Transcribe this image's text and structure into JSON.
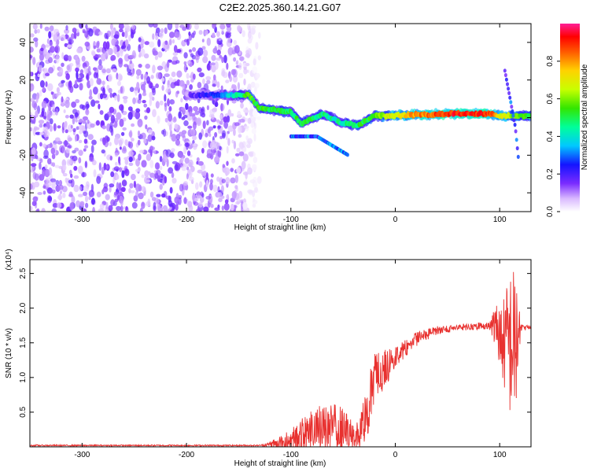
{
  "title": "C2E2.2025.360.14.21.G07",
  "chart_data": [
    {
      "type": "heatmap",
      "title": "C2E2.2025.360.14.21.G07",
      "xlabel": "Height of straight line (km)",
      "ylabel": "Frequency (Hz)",
      "xlim": [
        -350,
        130
      ],
      "ylim": [
        -50,
        50
      ],
      "x_ticks": [
        -300,
        -200,
        -100,
        0,
        100
      ],
      "x_tick_labels": [
        "-300",
        "-200",
        "-100",
        "0",
        "100"
      ],
      "y_ticks": [
        -40,
        -20,
        0,
        20,
        40
      ],
      "y_tick_labels": [
        "-40",
        "-20",
        "0",
        "20",
        "40"
      ],
      "colorbar": {
        "label": "Normalized spectral amplitude",
        "range": [
          0,
          1
        ],
        "ticks": [
          0.0,
          0.2,
          0.4,
          0.6,
          0.8
        ],
        "tick_labels": [
          "0.0",
          "0.2",
          "0.4",
          "0.6",
          "0.8"
        ]
      },
      "noise_region": {
        "x_range": [
          -350,
          -140
        ],
        "freq_range": [
          -50,
          50
        ],
        "amplitude": 0.05
      },
      "ridge": [
        {
          "x": -200,
          "freq": 12,
          "amp": 0.1
        },
        {
          "x": -160,
          "freq": 12,
          "amp": 0.35
        },
        {
          "x": -140,
          "freq": 12,
          "amp": 0.55
        },
        {
          "x": -130,
          "freq": 5,
          "amp": 0.55
        },
        {
          "x": -100,
          "freq": 3,
          "amp": 0.5
        },
        {
          "x": -90,
          "freq": -3,
          "amp": 0.5
        },
        {
          "x": -70,
          "freq": 2,
          "amp": 0.45
        },
        {
          "x": -50,
          "freq": -3,
          "amp": 0.45
        },
        {
          "x": -35,
          "freq": -4,
          "amp": 0.5
        },
        {
          "x": -20,
          "freq": 1,
          "amp": 0.55
        },
        {
          "x": 0,
          "freq": 1,
          "amp": 0.7
        },
        {
          "x": 20,
          "freq": 1.5,
          "amp": 0.8
        },
        {
          "x": 50,
          "freq": 2,
          "amp": 0.9
        },
        {
          "x": 90,
          "freq": 2,
          "amp": 0.9
        },
        {
          "x": 100,
          "freq": 1,
          "amp": 0.7
        },
        {
          "x": 130,
          "freq": 1,
          "amp": 0.5
        }
      ],
      "secondary_branches": [
        {
          "points": [
            {
              "x": -100,
              "freq": -10
            },
            {
              "x": -75,
              "freq": -10
            },
            {
              "x": -60,
              "freq": -15
            },
            {
              "x": -45,
              "freq": -20
            }
          ],
          "amp": 0.3
        },
        {
          "points": [
            {
              "x": 105,
              "freq": 25
            },
            {
              "x": 110,
              "freq": 10
            },
            {
              "x": 115,
              "freq": -5
            },
            {
              "x": 118,
              "freq": -22
            }
          ],
          "amp": 0.25
        }
      ]
    },
    {
      "type": "line",
      "xlabel": "Height of straight line (km)",
      "ylabel": "SNR (10 * v/v)",
      "y_multiplier": "(x10⁴)",
      "xlim": [
        -350,
        130
      ],
      "ylim": [
        0,
        2.7
      ],
      "x_ticks": [
        -300,
        -200,
        -100,
        0,
        100
      ],
      "x_tick_labels": [
        "-300",
        "-200",
        "-100",
        "0",
        "100"
      ],
      "y_ticks": [
        0.5,
        1.0,
        1.5,
        2.0,
        2.5
      ],
      "y_tick_labels": [
        "0.5",
        "1.0",
        "1.5",
        "2.0",
        "2.5"
      ],
      "series": [
        {
          "name": "SNR",
          "color": "#e8312f",
          "envelope": [
            {
              "x": -350,
              "base": 0.02,
              "amp": 0.02
            },
            {
              "x": -130,
              "base": 0.02,
              "amp": 0.02
            },
            {
              "x": -110,
              "base": 0.05,
              "amp": 0.1
            },
            {
              "x": -90,
              "base": 0.15,
              "amp": 0.25
            },
            {
              "x": -70,
              "base": 0.3,
              "amp": 0.35
            },
            {
              "x": -50,
              "base": 0.25,
              "amp": 0.35
            },
            {
              "x": -35,
              "base": 0.15,
              "amp": 0.2
            },
            {
              "x": -28,
              "base": 0.5,
              "amp": 0.45
            },
            {
              "x": -20,
              "base": 1.0,
              "amp": 0.35
            },
            {
              "x": -10,
              "base": 1.1,
              "amp": 0.3
            },
            {
              "x": 0,
              "base": 1.3,
              "amp": 0.15
            },
            {
              "x": 20,
              "base": 1.55,
              "amp": 0.1
            },
            {
              "x": 40,
              "base": 1.68,
              "amp": 0.06
            },
            {
              "x": 60,
              "base": 1.72,
              "amp": 0.05
            },
            {
              "x": 90,
              "base": 1.75,
              "amp": 0.05
            },
            {
              "x": 98,
              "base": 1.72,
              "amp": 0.4
            },
            {
              "x": 103,
              "base": 1.5,
              "amp": 0.6
            },
            {
              "x": 110,
              "base": 1.5,
              "amp": 1.1
            },
            {
              "x": 116,
              "base": 1.5,
              "amp": 1.1
            },
            {
              "x": 120,
              "base": 1.72,
              "amp": 0.05
            },
            {
              "x": 130,
              "base": 1.72,
              "amp": 0.03
            }
          ]
        }
      ]
    }
  ]
}
